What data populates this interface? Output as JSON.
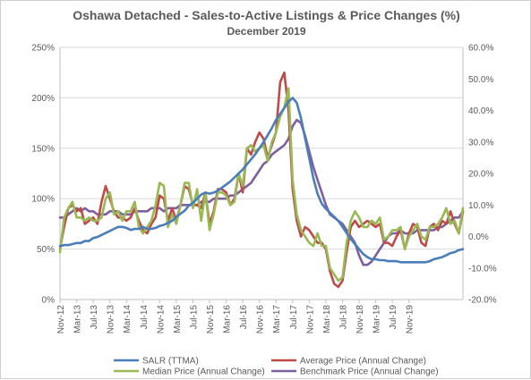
{
  "chart_data": {
    "type": "line",
    "title": "Oshawa Detached - Sales-to-Active Listings & Price Changes (%)",
    "subtitle": "December 2019",
    "xlabel": "",
    "ylabel": "",
    "left_axis": {
      "ticks": [
        "0%",
        "50%",
        "100%",
        "150%",
        "200%",
        "250%"
      ],
      "ylim": [
        0,
        250
      ],
      "unit": "%"
    },
    "right_axis": {
      "ticks": [
        "-20.0%",
        "-10.0%",
        "0.0%",
        "10.0%",
        "20.0%",
        "30.0%",
        "40.0%",
        "50.0%",
        "60.0%"
      ],
      "ylim": [
        -20,
        60
      ],
      "unit": "%"
    },
    "x_tick_labels": [
      "Nov-12",
      "Mar-13",
      "Jul-13",
      "Nov-13",
      "Mar-14",
      "Jul-14",
      "Nov-14",
      "Mar-15",
      "Jul-15",
      "Nov-15",
      "Mar-16",
      "Jul-16",
      "Nov-16",
      "Mar-17",
      "Jul-17",
      "Nov-17",
      "Mar-18",
      "Jul-18",
      "Nov-18",
      "Mar-19",
      "Jul-19",
      "Nov-19"
    ],
    "grid": true,
    "legend_position": "bottom",
    "series": [
      {
        "name": "SALR (TTMA)",
        "axis": "left",
        "color": "#4a7ebb",
        "values": [
          53,
          54,
          54,
          55,
          56,
          56,
          58,
          58,
          61,
          62,
          64,
          66,
          68,
          70,
          72,
          72,
          71,
          69,
          70,
          70,
          72,
          70,
          70,
          71,
          73,
          74,
          76,
          78,
          82,
          85,
          88,
          93,
          96,
          100,
          104,
          106,
          105,
          106,
          108,
          111,
          114,
          117,
          121,
          125,
          129,
          134,
          139,
          144,
          150,
          156,
          163,
          170,
          178,
          184,
          190,
          196,
          200,
          195,
          180,
          160,
          140,
          120,
          105,
          95,
          90,
          86,
          82,
          78,
          72,
          66,
          60,
          55,
          50,
          45,
          42,
          40,
          40,
          39,
          39,
          38,
          38,
          38,
          37,
          37,
          37,
          37,
          37,
          37,
          37,
          38,
          40,
          41,
          42,
          44,
          46,
          47,
          49,
          50
        ]
      },
      {
        "name": "Average Price (Annual Change)",
        "axis": "right",
        "color": "#be4b48",
        "values": [
          -4,
          3,
          9,
          10,
          8,
          9,
          4,
          5,
          6,
          4,
          11,
          16,
          12,
          8,
          6,
          6,
          5,
          6,
          9,
          5,
          2,
          1,
          4,
          6,
          13,
          12,
          5,
          9,
          5,
          10,
          16,
          15,
          10,
          10,
          9,
          14,
          4,
          8,
          15,
          15,
          14,
          10,
          12,
          20,
          14,
          28,
          26,
          30,
          33,
          31,
          25,
          29,
          33,
          49,
          52,
          40,
          15,
          5,
          0,
          3,
          2,
          0,
          -2,
          -2,
          -4,
          -11,
          -15,
          -16,
          -14,
          -5,
          3,
          5,
          3,
          4,
          5,
          4,
          3,
          4,
          -2,
          -2,
          -3,
          0,
          2,
          -4,
          1,
          4,
          3,
          -2,
          -3,
          3,
          4,
          2,
          5,
          4,
          8,
          4,
          1,
          8
        ]
      },
      {
        "name": "Median Price (Annual Change)",
        "axis": "right",
        "color": "#98b954",
        "values": [
          -5,
          6,
          9,
          11,
          6,
          6,
          5,
          6,
          5,
          5,
          6,
          12,
          14,
          7,
          8,
          5,
          8,
          8,
          11,
          3,
          1,
          3,
          5,
          10,
          17,
          16,
          3,
          7,
          4,
          10,
          17,
          17,
          9,
          15,
          5,
          14,
          2,
          7,
          14,
          14,
          13,
          10,
          11,
          20,
          16,
          28,
          29,
          27,
          28,
          29,
          24,
          30,
          33,
          38,
          41,
          47,
          18,
          7,
          2,
          0,
          -2,
          -3,
          1,
          -3,
          -3,
          -10,
          -12,
          -14,
          -13,
          -2,
          5,
          8,
          6,
          3,
          3,
          5,
          4,
          6,
          -1,
          0,
          2,
          2,
          3,
          -4,
          0,
          2,
          4,
          0,
          -1,
          3,
          3,
          4,
          6,
          9,
          4,
          5,
          1,
          9
        ]
      },
      {
        "name": "Benchmark Price (Annual Change)",
        "axis": "right",
        "color": "#7d60a0",
        "values": [
          6,
          6,
          7,
          8,
          9,
          8,
          9,
          8,
          8,
          7,
          7,
          7,
          8,
          8,
          8,
          7,
          7,
          7,
          8,
          8,
          8,
          8,
          9,
          9,
          9,
          8,
          9,
          9,
          9,
          10,
          10,
          10,
          10,
          10,
          11,
          11,
          11,
          12,
          12,
          12,
          12,
          13,
          13,
          14,
          15,
          16,
          17,
          19,
          21,
          23,
          24,
          26,
          27,
          28,
          29,
          31,
          35,
          37,
          36,
          32,
          27,
          22,
          18,
          14,
          10,
          7,
          6,
          5,
          4,
          2,
          0,
          -2,
          -6,
          -9,
          -9,
          -8,
          -6,
          -4,
          -2,
          0,
          1,
          1,
          2,
          1,
          1,
          1,
          2,
          2,
          2,
          2,
          2,
          3,
          3,
          4,
          5,
          6,
          6,
          8
        ]
      }
    ]
  }
}
